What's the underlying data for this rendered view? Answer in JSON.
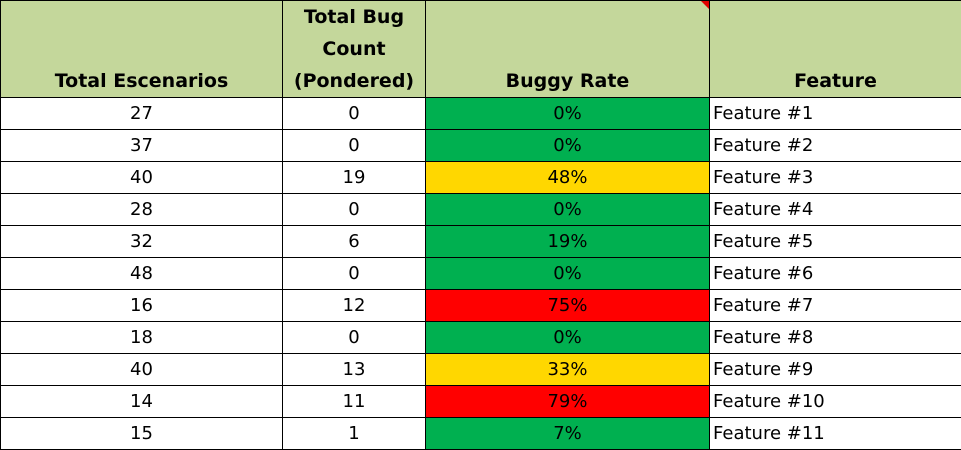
{
  "headers": {
    "total_scenarios": "Total Escenarios",
    "bug_count_line1": "Total Bug",
    "bug_count_line2": "Count",
    "bug_count_line3": "(Pondered)",
    "buggy_rate": "Buggy Rate",
    "feature": "Feature"
  },
  "rows": [
    {
      "scenarios": "27",
      "bugs": "0",
      "rate": "0%",
      "feature": "Feature #1",
      "level": "green"
    },
    {
      "scenarios": "37",
      "bugs": "0",
      "rate": "0%",
      "feature": "Feature #2",
      "level": "green"
    },
    {
      "scenarios": "40",
      "bugs": "19",
      "rate": "48%",
      "feature": "Feature #3",
      "level": "yellow"
    },
    {
      "scenarios": "28",
      "bugs": "0",
      "rate": "0%",
      "feature": "Feature #4",
      "level": "green"
    },
    {
      "scenarios": "32",
      "bugs": "6",
      "rate": "19%",
      "feature": "Feature #5",
      "level": "green"
    },
    {
      "scenarios": "48",
      "bugs": "0",
      "rate": "0%",
      "feature": "Feature #6",
      "level": "green"
    },
    {
      "scenarios": "16",
      "bugs": "12",
      "rate": "75%",
      "feature": "Feature #7",
      "level": "red"
    },
    {
      "scenarios": "18",
      "bugs": "0",
      "rate": "0%",
      "feature": "Feature #8",
      "level": "green"
    },
    {
      "scenarios": "40",
      "bugs": "13",
      "rate": "33%",
      "feature": "Feature #9",
      "level": "yellow"
    },
    {
      "scenarios": "14",
      "bugs": "11",
      "rate": "79%",
      "feature": "Feature #10",
      "level": "red"
    },
    {
      "scenarios": "15",
      "bugs": "1",
      "rate": "7%",
      "feature": "Feature #11",
      "level": "green"
    }
  ],
  "colors": {
    "header": "#c4d79b",
    "green": "#00b050",
    "yellow": "#ffd700",
    "red": "#ff0000",
    "comment_indicator": "#e00000"
  }
}
